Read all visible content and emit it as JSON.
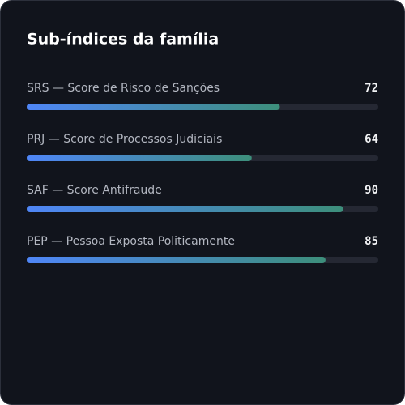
{
  "chart_data": {
    "type": "bar",
    "orientation": "horizontal",
    "title": "Sub-índices da família",
    "categories": [
      "SRS — Score de Risco de Sanções",
      "PRJ — Score de Processos Judiciais",
      "SAF — Score Antifraude",
      "PEP — Pessoa Exposta Politicamente"
    ],
    "values": [
      72,
      64,
      90,
      85
    ],
    "xlim": [
      0,
      100
    ],
    "color": [
      "#4f86f7",
      "#3d8f7b"
    ]
  }
}
